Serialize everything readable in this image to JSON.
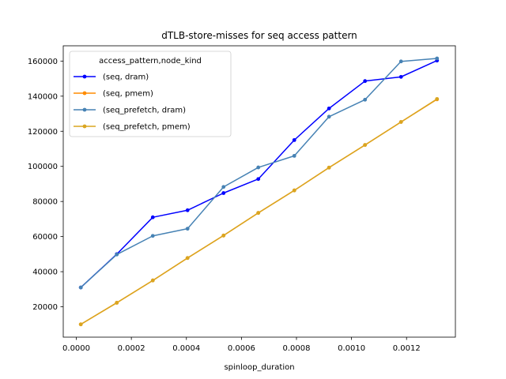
{
  "chart_data": {
    "type": "line",
    "title": "dTLB-store-misses for seq access pattern",
    "xlabel": "spinloop_duration",
    "ylabel": "",
    "xlim": [
      -4.75e-05,
      0.0013775
    ],
    "ylim": [
      2700,
      168700
    ],
    "xticks": [
      0.0,
      0.0002,
      0.0004,
      0.0006,
      0.0008,
      0.001,
      0.0012
    ],
    "xtick_labels": [
      "0.0000",
      "0.0002",
      "0.0004",
      "0.0006",
      "0.0008",
      "0.0010",
      "0.0012"
    ],
    "yticks": [
      20000,
      40000,
      60000,
      80000,
      100000,
      120000,
      140000,
      160000
    ],
    "ytick_labels": [
      "20000",
      "40000",
      "60000",
      "80000",
      "100000",
      "120000",
      "140000",
      "160000"
    ],
    "grid": false,
    "legend_title": "access_pattern,node_kind",
    "legend_position": "upper-left",
    "series": [
      {
        "name": "(seq, dram)",
        "color": "#0000ff",
        "x": [
          1.63e-05,
          0.0001471,
          0.0002779,
          0.0004042,
          0.000535,
          0.0006613,
          0.0007921,
          0.0009183,
          0.0010491,
          0.0011799,
          0.0013107
        ],
        "y": [
          31000,
          50000,
          71000,
          75000,
          84800,
          92800,
          115000,
          133000,
          148600,
          151000,
          160300
        ]
      },
      {
        "name": "(seq, pmem)",
        "color": "#ff8c00",
        "x": [
          1.63e-05,
          0.0001471,
          0.0002779,
          0.0004042,
          0.000535,
          0.0006613,
          0.0007921,
          0.0009183,
          0.0010491,
          0.0011799,
          0.0013107
        ],
        "y": [
          10000,
          22300,
          35000,
          47800,
          60600,
          73500,
          86300,
          99300,
          112200,
          125300,
          138200
        ]
      },
      {
        "name": "(seq_prefetch, dram)",
        "color": "#4682b4",
        "x": [
          1.63e-05,
          0.0001471,
          0.0002779,
          0.0004042,
          0.000535,
          0.0006613,
          0.0007921,
          0.0009183,
          0.0010491,
          0.0011799,
          0.0013107
        ],
        "y": [
          31000,
          49800,
          60400,
          64500,
          88300,
          99400,
          106000,
          128300,
          138000,
          159800,
          161500
        ]
      },
      {
        "name": "(seq_prefetch, pmem)",
        "color": "#daa520",
        "x": [
          1.63e-05,
          0.0001471,
          0.0002779,
          0.0004042,
          0.000535,
          0.0006613,
          0.0007921,
          0.0009183,
          0.0010491,
          0.0011799,
          0.0013107
        ],
        "y": [
          10000,
          22300,
          35000,
          47800,
          60600,
          73500,
          86300,
          99300,
          112200,
          125300,
          138400
        ]
      }
    ]
  }
}
